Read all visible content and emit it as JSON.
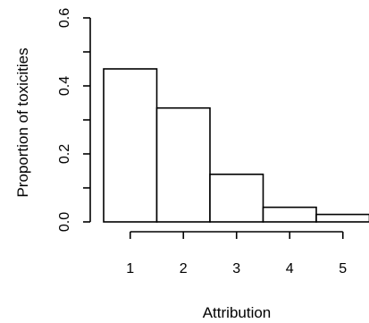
{
  "chart_data": {
    "type": "bar",
    "title": "",
    "xlabel": "Attribution",
    "ylabel": "Proportion of toxicities",
    "categories": [
      "1",
      "2",
      "3",
      "4",
      "5"
    ],
    "values": [
      0.45,
      0.335,
      0.14,
      0.043,
      0.022
    ],
    "ylim": [
      0,
      0.6
    ],
    "yticks": [
      0.0,
      0.2,
      0.4,
      0.6
    ],
    "ytick_labels": [
      "0.0",
      "0.2",
      "0.4",
      "0.6"
    ],
    "yticks_minor": [
      0.1,
      0.3,
      0.5
    ],
    "grid": false,
    "legend": "none",
    "colors": {
      "bar_fill": "#ffffff",
      "bar_stroke": "#000000",
      "text": "#000000"
    }
  }
}
